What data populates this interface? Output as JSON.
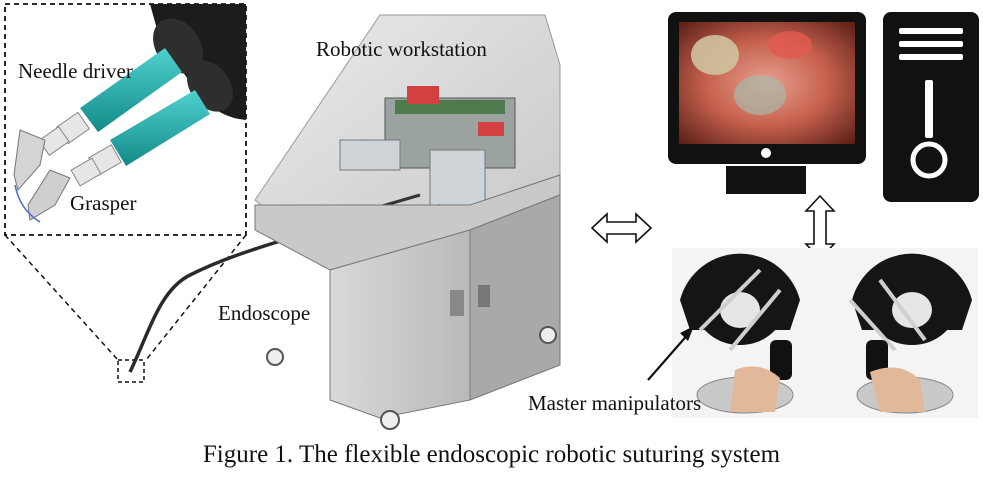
{
  "figure": {
    "caption": "Figure 1. The flexible endoscopic robotic suturing system",
    "labels": {
      "needle_driver": "Needle driver",
      "grasper": "Grasper",
      "robotic_workstation": "Robotic workstation",
      "endoscope": "Endoscope",
      "master_manipulators": "Master manipulators"
    }
  }
}
